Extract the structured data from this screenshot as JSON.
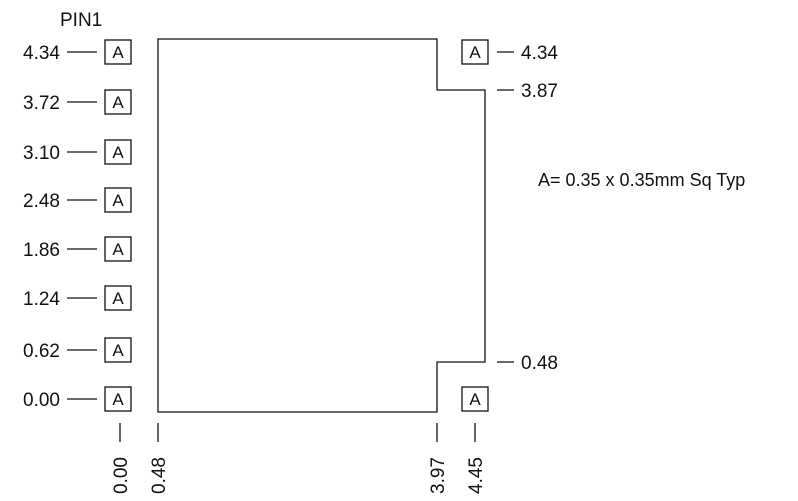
{
  "pin1_label": "PIN1",
  "pad_letter": "A",
  "left_pads": [
    "4.34",
    "3.72",
    "3.10",
    "2.48",
    "1.86",
    "1.24",
    "0.62",
    "0.00"
  ],
  "right_pads": [
    {
      "value": "4.34",
      "has_pad": true
    },
    {
      "value": "3.87",
      "has_pad": false
    },
    {
      "value": "0.48",
      "has_pad": false
    },
    {
      "value": "",
      "has_pad": true
    }
  ],
  "bottom_labels": [
    "0.00",
    "0.48",
    "3.97",
    "4.45"
  ],
  "note": "A= 0.35 x 0.35mm Sq Typ",
  "line_color": "#111111"
}
